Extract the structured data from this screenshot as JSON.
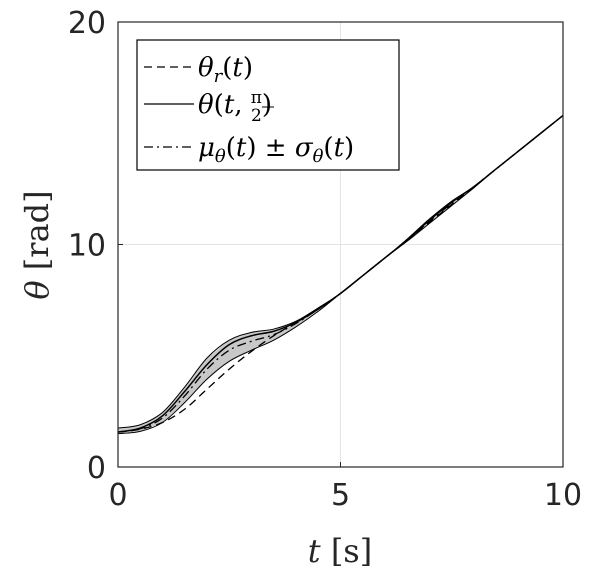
{
  "chart_data": {
    "type": "line",
    "xlabel": "t [s]",
    "ylabel": "θ [rad]",
    "xlim": [
      0,
      10
    ],
    "ylim": [
      0,
      20
    ],
    "xticks": [
      0,
      5,
      10
    ],
    "yticks": [
      0,
      10,
      20
    ],
    "grid": true,
    "legend_position": "top-left",
    "legend": [
      {
        "label": "θr(t)",
        "style": "dashed"
      },
      {
        "label": "θ(t, π/2)",
        "style": "solid"
      },
      {
        "label": "μθ(t) ± σθ(t)",
        "style": "dash-dot"
      }
    ],
    "x": [
      0,
      0.5,
      1,
      1.5,
      2,
      2.5,
      3,
      3.5,
      4,
      4.5,
      5,
      5.5,
      6,
      6.5,
      7,
      7.5,
      8,
      8.5,
      9,
      9.5,
      10
    ],
    "series": [
      {
        "name": "θr(t)",
        "style": "dashed",
        "values": [
          1.57,
          1.7,
          2.0,
          2.6,
          3.5,
          4.4,
          5.2,
          5.9,
          6.5,
          7.1,
          7.8,
          8.6,
          9.4,
          10.2,
          11.0,
          11.8,
          12.6,
          13.4,
          14.2,
          15.0,
          15.8
        ]
      },
      {
        "name": "θ(t, π/2)",
        "style": "solid",
        "values": [
          1.57,
          1.75,
          2.3,
          3.4,
          4.6,
          5.5,
          5.9,
          6.1,
          6.5,
          7.1,
          7.8,
          8.6,
          9.4,
          10.2,
          11.1,
          11.9,
          12.6,
          13.4,
          14.2,
          15.0,
          15.8
        ]
      },
      {
        "name": "μθ(t) ± σθ(t)",
        "style": "dash-dot",
        "values": [
          1.57,
          1.72,
          2.2,
          3.2,
          4.4,
          5.25,
          5.65,
          5.95,
          6.45,
          7.1,
          7.8,
          8.6,
          9.4,
          10.2,
          11.05,
          11.85,
          12.6,
          13.4,
          14.2,
          15.0,
          15.8
        ]
      },
      {
        "name": "upper",
        "style": "solid-thin",
        "values": [
          1.75,
          1.9,
          2.45,
          3.6,
          4.9,
          5.7,
          6.05,
          6.2,
          6.55,
          7.15,
          7.8,
          8.6,
          9.4,
          10.25,
          11.15,
          11.95,
          12.6,
          13.4,
          14.2,
          15.0,
          15.8
        ]
      },
      {
        "name": "lower",
        "style": "solid-thin",
        "values": [
          1.5,
          1.6,
          2.0,
          2.9,
          3.95,
          4.75,
          5.25,
          5.7,
          6.3,
          7.0,
          7.8,
          8.6,
          9.4,
          10.15,
          10.95,
          11.75,
          12.55,
          13.4,
          14.2,
          15.0,
          15.8
        ]
      }
    ]
  }
}
